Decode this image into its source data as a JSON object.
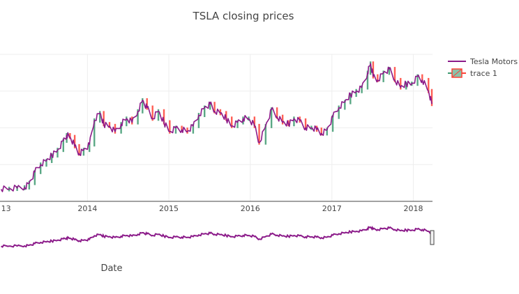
{
  "chart_data": {
    "type": "line",
    "title": "TSLA closing prices",
    "xlabel": "Date",
    "ylabel": "",
    "x_tick_labels": [
      "13",
      "2014",
      "2015",
      "2016",
      "2017",
      "2018"
    ],
    "legend": {
      "placement": "top-right",
      "entries": [
        "Tesla Motors",
        "trace 1"
      ]
    },
    "grid": true,
    "range_slider": true,
    "series": [
      {
        "name": "Tesla Motors",
        "style": "line",
        "x": [
          "2012-12-10",
          "2013-01-15",
          "2013-02-20",
          "2013-03-25",
          "2013-04-15",
          "2013-05-10",
          "2013-06-05",
          "2013-07-01",
          "2013-07-25",
          "2013-08-20",
          "2013-09-15",
          "2013-09-30",
          "2013-10-15",
          "2013-11-05",
          "2013-11-25",
          "2013-12-15",
          "2014-01-10",
          "2014-02-01",
          "2014-02-26",
          "2014-03-15",
          "2014-04-10",
          "2014-05-05",
          "2014-06-01",
          "2014-06-25",
          "2014-07-20",
          "2014-08-15",
          "2014-09-05",
          "2014-09-25",
          "2014-10-20",
          "2014-11-15",
          "2014-12-10",
          "2015-01-05",
          "2015-02-01",
          "2015-02-28",
          "2015-03-25",
          "2015-04-20",
          "2015-05-15",
          "2015-06-10",
          "2015-07-05",
          "2015-07-25",
          "2015-08-20",
          "2015-09-15",
          "2015-10-10",
          "2015-11-05",
          "2015-11-30",
          "2015-12-25",
          "2016-01-20",
          "2016-02-10",
          "2016-03-10",
          "2016-04-05",
          "2016-04-30",
          "2016-05-25",
          "2016-06-20",
          "2016-07-15",
          "2016-08-10",
          "2016-09-05",
          "2016-10-01",
          "2016-10-25",
          "2016-11-15",
          "2016-12-10",
          "2017-01-05",
          "2017-02-01",
          "2017-02-28",
          "2017-03-25",
          "2017-04-20",
          "2017-05-15",
          "2017-06-10",
          "2017-06-23",
          "2017-07-05",
          "2017-07-25",
          "2017-08-20",
          "2017-09-15",
          "2017-10-10",
          "2017-11-05",
          "2017-11-30",
          "2017-12-25",
          "2018-01-20",
          "2018-02-10",
          "2018-03-10",
          "2018-03-25"
        ],
        "y": [
          33,
          34,
          36,
          38,
          50,
          80,
          100,
          110,
          125,
          140,
          165,
          180,
          175,
          150,
          130,
          140,
          155,
          220,
          240,
          210,
          205,
          190,
          210,
          225,
          215,
          245,
          275,
          255,
          225,
          245,
          215,
          190,
          200,
          195,
          190,
          205,
          235,
          255,
          265,
          245,
          240,
          225,
          205,
          215,
          225,
          225,
          205,
          160,
          205,
          250,
          230,
          215,
          210,
          225,
          220,
          200,
          200,
          195,
          185,
          195,
          230,
          255,
          270,
          290,
          300,
          310,
          350,
          375,
          340,
          330,
          350,
          360,
          330,
          310,
          320,
          320,
          340,
          330,
          300,
          265
        ]
      },
      {
        "name": "trace 1",
        "style": "candlestick",
        "increasing_color": "#3d9970",
        "decreasing_color": "#ff4136"
      }
    ],
    "colors": {
      "line": "#8b1a89",
      "increasing": "#3d9970",
      "decreasing": "#ff4136",
      "grid": "#eeeeee",
      "axis": "#444444"
    }
  }
}
